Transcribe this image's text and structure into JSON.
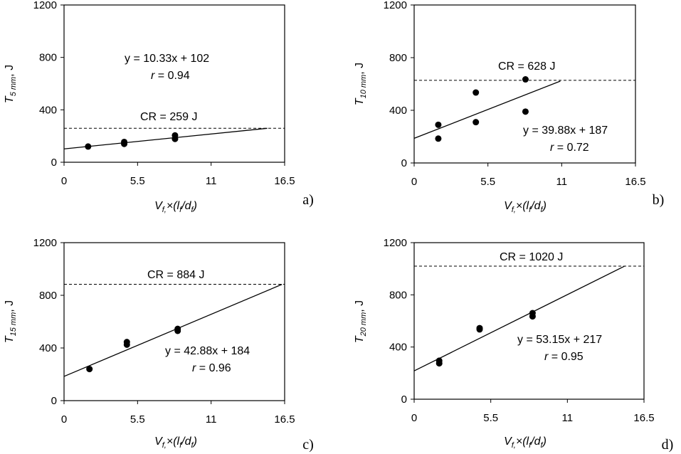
{
  "chart_data": [
    {
      "type": "scatter",
      "panel_label": "a)",
      "ylabel": {
        "main": "T",
        "sub": "5 mm",
        "unit": ", J"
      },
      "xlabel": {
        "v": "V",
        "vsub": "f,",
        "times": "×(l",
        "lsub": "f",
        "slash": "/d",
        "dsub": "f",
        "close": ")"
      },
      "xlim": [
        0,
        16.5
      ],
      "ylim": [
        0,
        1200
      ],
      "xticks": [
        "0",
        "5.5",
        "11",
        "16.5"
      ],
      "yticks": [
        "0",
        "400",
        "800",
        "1200"
      ],
      "points": [
        [
          1.8,
          120
        ],
        [
          4.5,
          140
        ],
        [
          4.5,
          155
        ],
        [
          8.3,
          178
        ],
        [
          8.3,
          205
        ]
      ],
      "fit": {
        "slope": 10.33,
        "intercept": 102,
        "x_end": 15.2
      },
      "cr": 259,
      "equation": "y = 10.33x + 102",
      "r_symbol": "r",
      "r_text": " = 0.94",
      "cr_text": "CR = 259 J"
    },
    {
      "type": "scatter",
      "panel_label": "b)",
      "ylabel": {
        "main": "T",
        "sub": "10 mm",
        "unit": ", J"
      },
      "xlabel": {
        "v": "V",
        "vsub": "f,",
        "times": "×(l",
        "lsub": "f",
        "slash": "/d",
        "dsub": "f",
        "close": ")"
      },
      "xlim": [
        0,
        16.5
      ],
      "ylim": [
        0,
        1200
      ],
      "xticks": [
        "0",
        "5.5",
        "11",
        "16.5"
      ],
      "yticks": [
        "0",
        "400",
        "800",
        "1200"
      ],
      "points": [
        [
          1.8,
          185
        ],
        [
          1.8,
          290
        ],
        [
          4.6,
          310
        ],
        [
          4.6,
          535
        ],
        [
          8.3,
          390
        ],
        [
          8.3,
          635
        ]
      ],
      "fit": {
        "slope": 39.88,
        "intercept": 187,
        "x_end": 10.9
      },
      "cr": 628,
      "equation": "y = 39.88x + 187",
      "r_symbol": "r",
      "r_text": " = 0.72",
      "cr_text": "CR = 628 J"
    },
    {
      "type": "scatter",
      "panel_label": "c)",
      "ylabel": {
        "main": "T",
        "sub": "15 mm",
        "unit": ", J"
      },
      "xlabel": {
        "v": "V",
        "vsub": "f,",
        "times": "×(l",
        "lsub": "f",
        "slash": "/d",
        "dsub": "f",
        "close": ")"
      },
      "xlim": [
        0,
        16.5
      ],
      "ylim": [
        0,
        1200
      ],
      "xticks": [
        "0",
        "5.5",
        "11",
        "16.5"
      ],
      "yticks": [
        "0",
        "400",
        "800",
        "1200"
      ],
      "points": [
        [
          1.9,
          240
        ],
        [
          4.7,
          425
        ],
        [
          4.7,
          445
        ],
        [
          8.5,
          530
        ],
        [
          8.5,
          545
        ]
      ],
      "fit": {
        "slope": 42.88,
        "intercept": 184,
        "x_end": 16.3
      },
      "cr": 884,
      "equation": "y = 42.88x + 184",
      "r_symbol": "r",
      "r_text": " = 0.96",
      "cr_text": "CR = 884 J"
    },
    {
      "type": "scatter",
      "panel_label": "d)",
      "ylabel": {
        "main": "T",
        "sub": "20 mm",
        "unit": ", J"
      },
      "xlabel": {
        "v": "V",
        "vsub": "f,",
        "times": "×(l",
        "lsub": "f",
        "slash": "/d",
        "dsub": "f",
        "close": ")"
      },
      "xlim": [
        0,
        16.5
      ],
      "ylim": [
        0,
        1200
      ],
      "xticks": [
        "0",
        "5.5",
        "11",
        "16.5"
      ],
      "yticks": [
        "0",
        "400",
        "800",
        "1200"
      ],
      "points": [
        [
          1.8,
          275
        ],
        [
          1.8,
          295
        ],
        [
          4.7,
          535
        ],
        [
          4.7,
          545
        ],
        [
          8.5,
          635
        ],
        [
          8.5,
          660
        ]
      ],
      "fit": {
        "slope": 53.15,
        "intercept": 217,
        "x_end": 15.1
      },
      "cr": 1020,
      "equation": "y = 53.15x + 217",
      "r_symbol": "r",
      "r_text": " = 0.95",
      "cr_text": "CR = 1020 J"
    }
  ]
}
